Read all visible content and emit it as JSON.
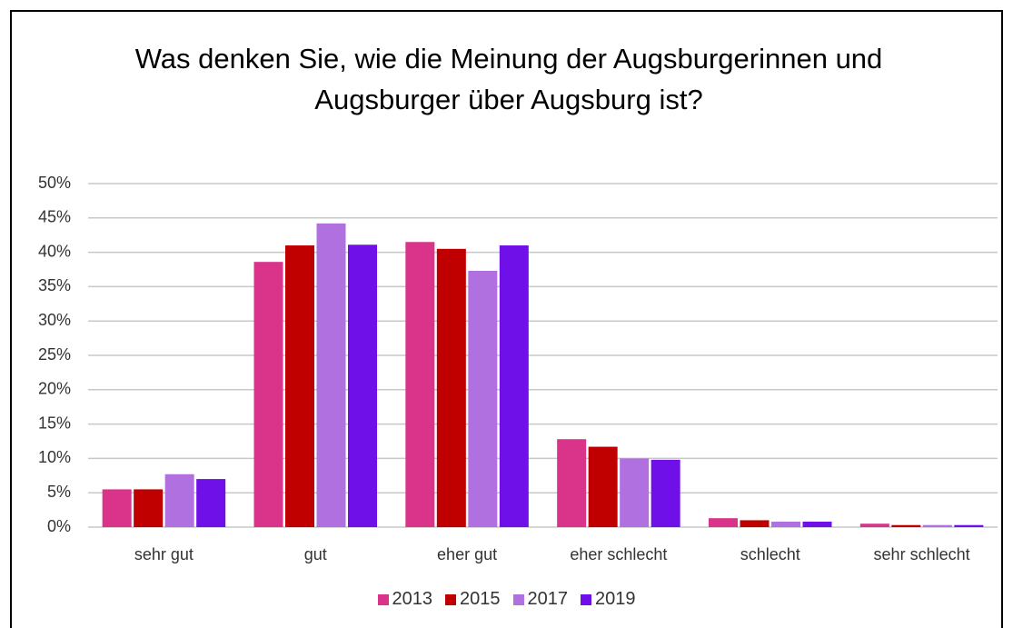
{
  "chart_data": {
    "type": "bar",
    "title": "Was denken Sie, wie die Meinung der Augsburgerinnen und Augsburger über Augsburg ist?",
    "categories": [
      "sehr gut",
      "gut",
      "eher gut",
      "eher schlecht",
      "schlecht",
      "sehr schlecht"
    ],
    "series": [
      {
        "name": "2013",
        "color": "#d9338a",
        "values": [
          5.5,
          38.6,
          41.5,
          12.8,
          1.3,
          0.5
        ]
      },
      {
        "name": "2015",
        "color": "#c00000",
        "values": [
          5.5,
          41.0,
          40.5,
          11.7,
          1.0,
          0.3
        ]
      },
      {
        "name": "2017",
        "color": "#b070e0",
        "values": [
          7.7,
          44.2,
          37.3,
          10.0,
          0.8,
          0.3
        ]
      },
      {
        "name": "2019",
        "color": "#7010e8",
        "values": [
          7.0,
          41.1,
          41.0,
          9.8,
          0.8,
          0.3
        ]
      }
    ],
    "ylim": [
      0,
      50
    ],
    "yticks": [
      {
        "value": 0,
        "label": "0%"
      },
      {
        "value": 5,
        "label": "5%"
      },
      {
        "value": 10,
        "label": "10%"
      },
      {
        "value": 15,
        "label": "15%"
      },
      {
        "value": 20,
        "label": "20%"
      },
      {
        "value": 25,
        "label": "25%"
      },
      {
        "value": 30,
        "label": "30%"
      },
      {
        "value": 35,
        "label": "35%"
      },
      {
        "value": 40,
        "label": "40%"
      },
      {
        "value": 45,
        "label": "45%"
      },
      {
        "value": 50,
        "label": "50%"
      }
    ],
    "grid": true,
    "legend": "bottom"
  }
}
